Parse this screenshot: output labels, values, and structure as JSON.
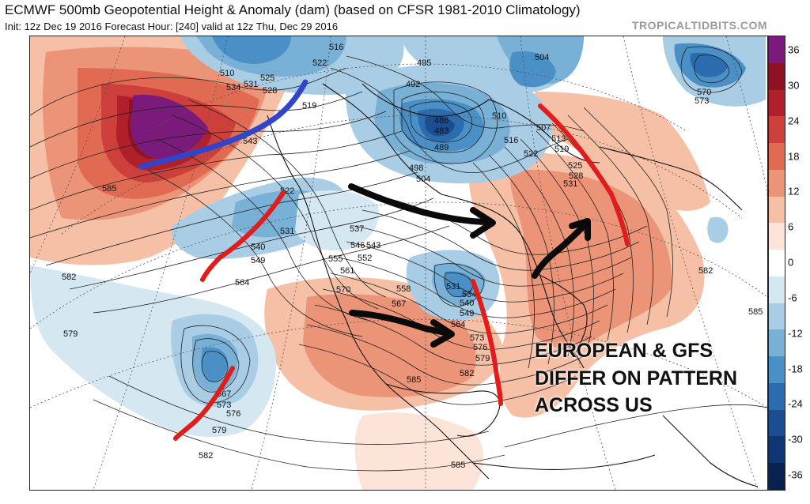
{
  "header": {
    "title": "ECMWF 500mb Geopotential Height & Anomaly (dam) (based on CFSR 1981-2010 Climatology)",
    "subtitle": "Init: 12z Dec 19 2016   Forecast Hour: [240]   valid at 12z Thu, Dec 29 2016",
    "site": "TROPICALTIDBITS.COM"
  },
  "annotation": {
    "lines": [
      "EUROPEAN & GFS",
      "DIFFER ON PATTERN",
      "ACROSS US"
    ]
  },
  "colorbar": {
    "labels": [
      "36",
      "30",
      "24",
      "18",
      "12",
      "6",
      "0",
      "-6",
      "-12",
      "-18",
      "-24",
      "-30",
      "-36"
    ],
    "colors": [
      "#7a1a7a",
      "#8e1222",
      "#b0202a",
      "#cc3f3a",
      "#e06a52",
      "#ec9478",
      "#f6c0a6",
      "#fce4d8",
      "#ffffff",
      "#d5e7f1",
      "#a9cde4",
      "#79b0d6",
      "#4a8fc6",
      "#2a6cae",
      "#1b4e91",
      "#0f3572",
      "#082150"
    ]
  },
  "contour_labels": [
    "510",
    "525",
    "531",
    "534",
    "528",
    "522",
    "516",
    "519",
    "495",
    "492",
    "486",
    "483",
    "489",
    "498",
    "504",
    "510",
    "507",
    "513",
    "519",
    "525",
    "528",
    "531",
    "516",
    "522",
    "504",
    "570",
    "573",
    "585",
    "543",
    "522",
    "531",
    "537",
    "540",
    "546",
    "543",
    "549",
    "555",
    "552",
    "561",
    "564",
    "558",
    "570",
    "567",
    "531",
    "534",
    "540",
    "549",
    "564",
    "573",
    "576",
    "579",
    "582",
    "585",
    "582",
    "579",
    "567",
    "573",
    "576",
    "579",
    "582",
    "585",
    "582",
    "585"
  ]
}
